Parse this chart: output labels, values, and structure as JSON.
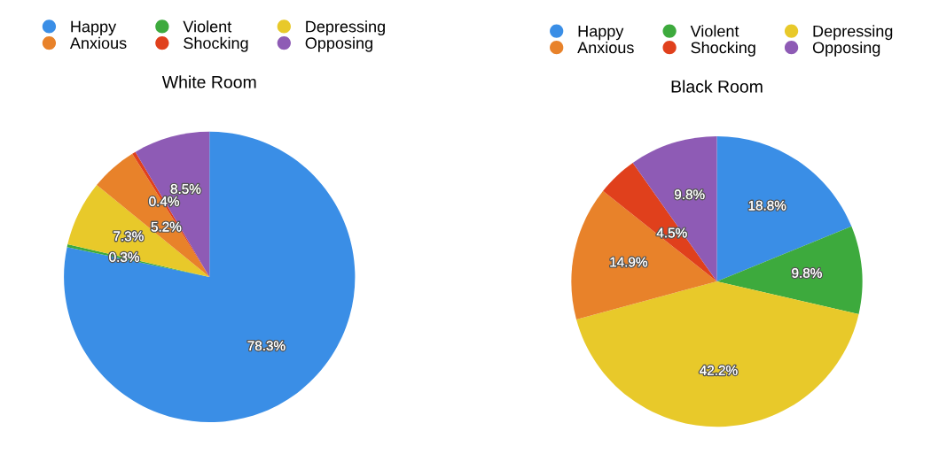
{
  "chart_data": [
    {
      "type": "pie",
      "title": "White Room",
      "categories": [
        "Happy",
        "Violent",
        "Depressing",
        "Anxious",
        "Shocking",
        "Opposing"
      ],
      "values": [
        78.3,
        0.3,
        7.3,
        5.2,
        0.4,
        8.5
      ],
      "value_labels": [
        "78.3%",
        "0.3%",
        "7.3%",
        "5.2%",
        "0.4%",
        "8.5%"
      ],
      "colors": [
        "#3a8ee6",
        "#3daa3d",
        "#e8c92a",
        "#e8822a",
        "#e0401c",
        "#8e5bb5"
      ],
      "legend": "top"
    },
    {
      "type": "pie",
      "title": "Black Room",
      "categories": [
        "Happy",
        "Violent",
        "Depressing",
        "Anxious",
        "Shocking",
        "Opposing"
      ],
      "values": [
        18.8,
        9.8,
        42.2,
        14.9,
        4.5,
        9.8
      ],
      "value_labels": [
        "18.8%",
        "9.8%",
        "42.2%",
        "14.9%",
        "4.5%",
        "9.8%"
      ],
      "colors": [
        "#3a8ee6",
        "#3daa3d",
        "#e8c92a",
        "#e8822a",
        "#e0401c",
        "#8e5bb5"
      ],
      "legend": "top"
    }
  ]
}
